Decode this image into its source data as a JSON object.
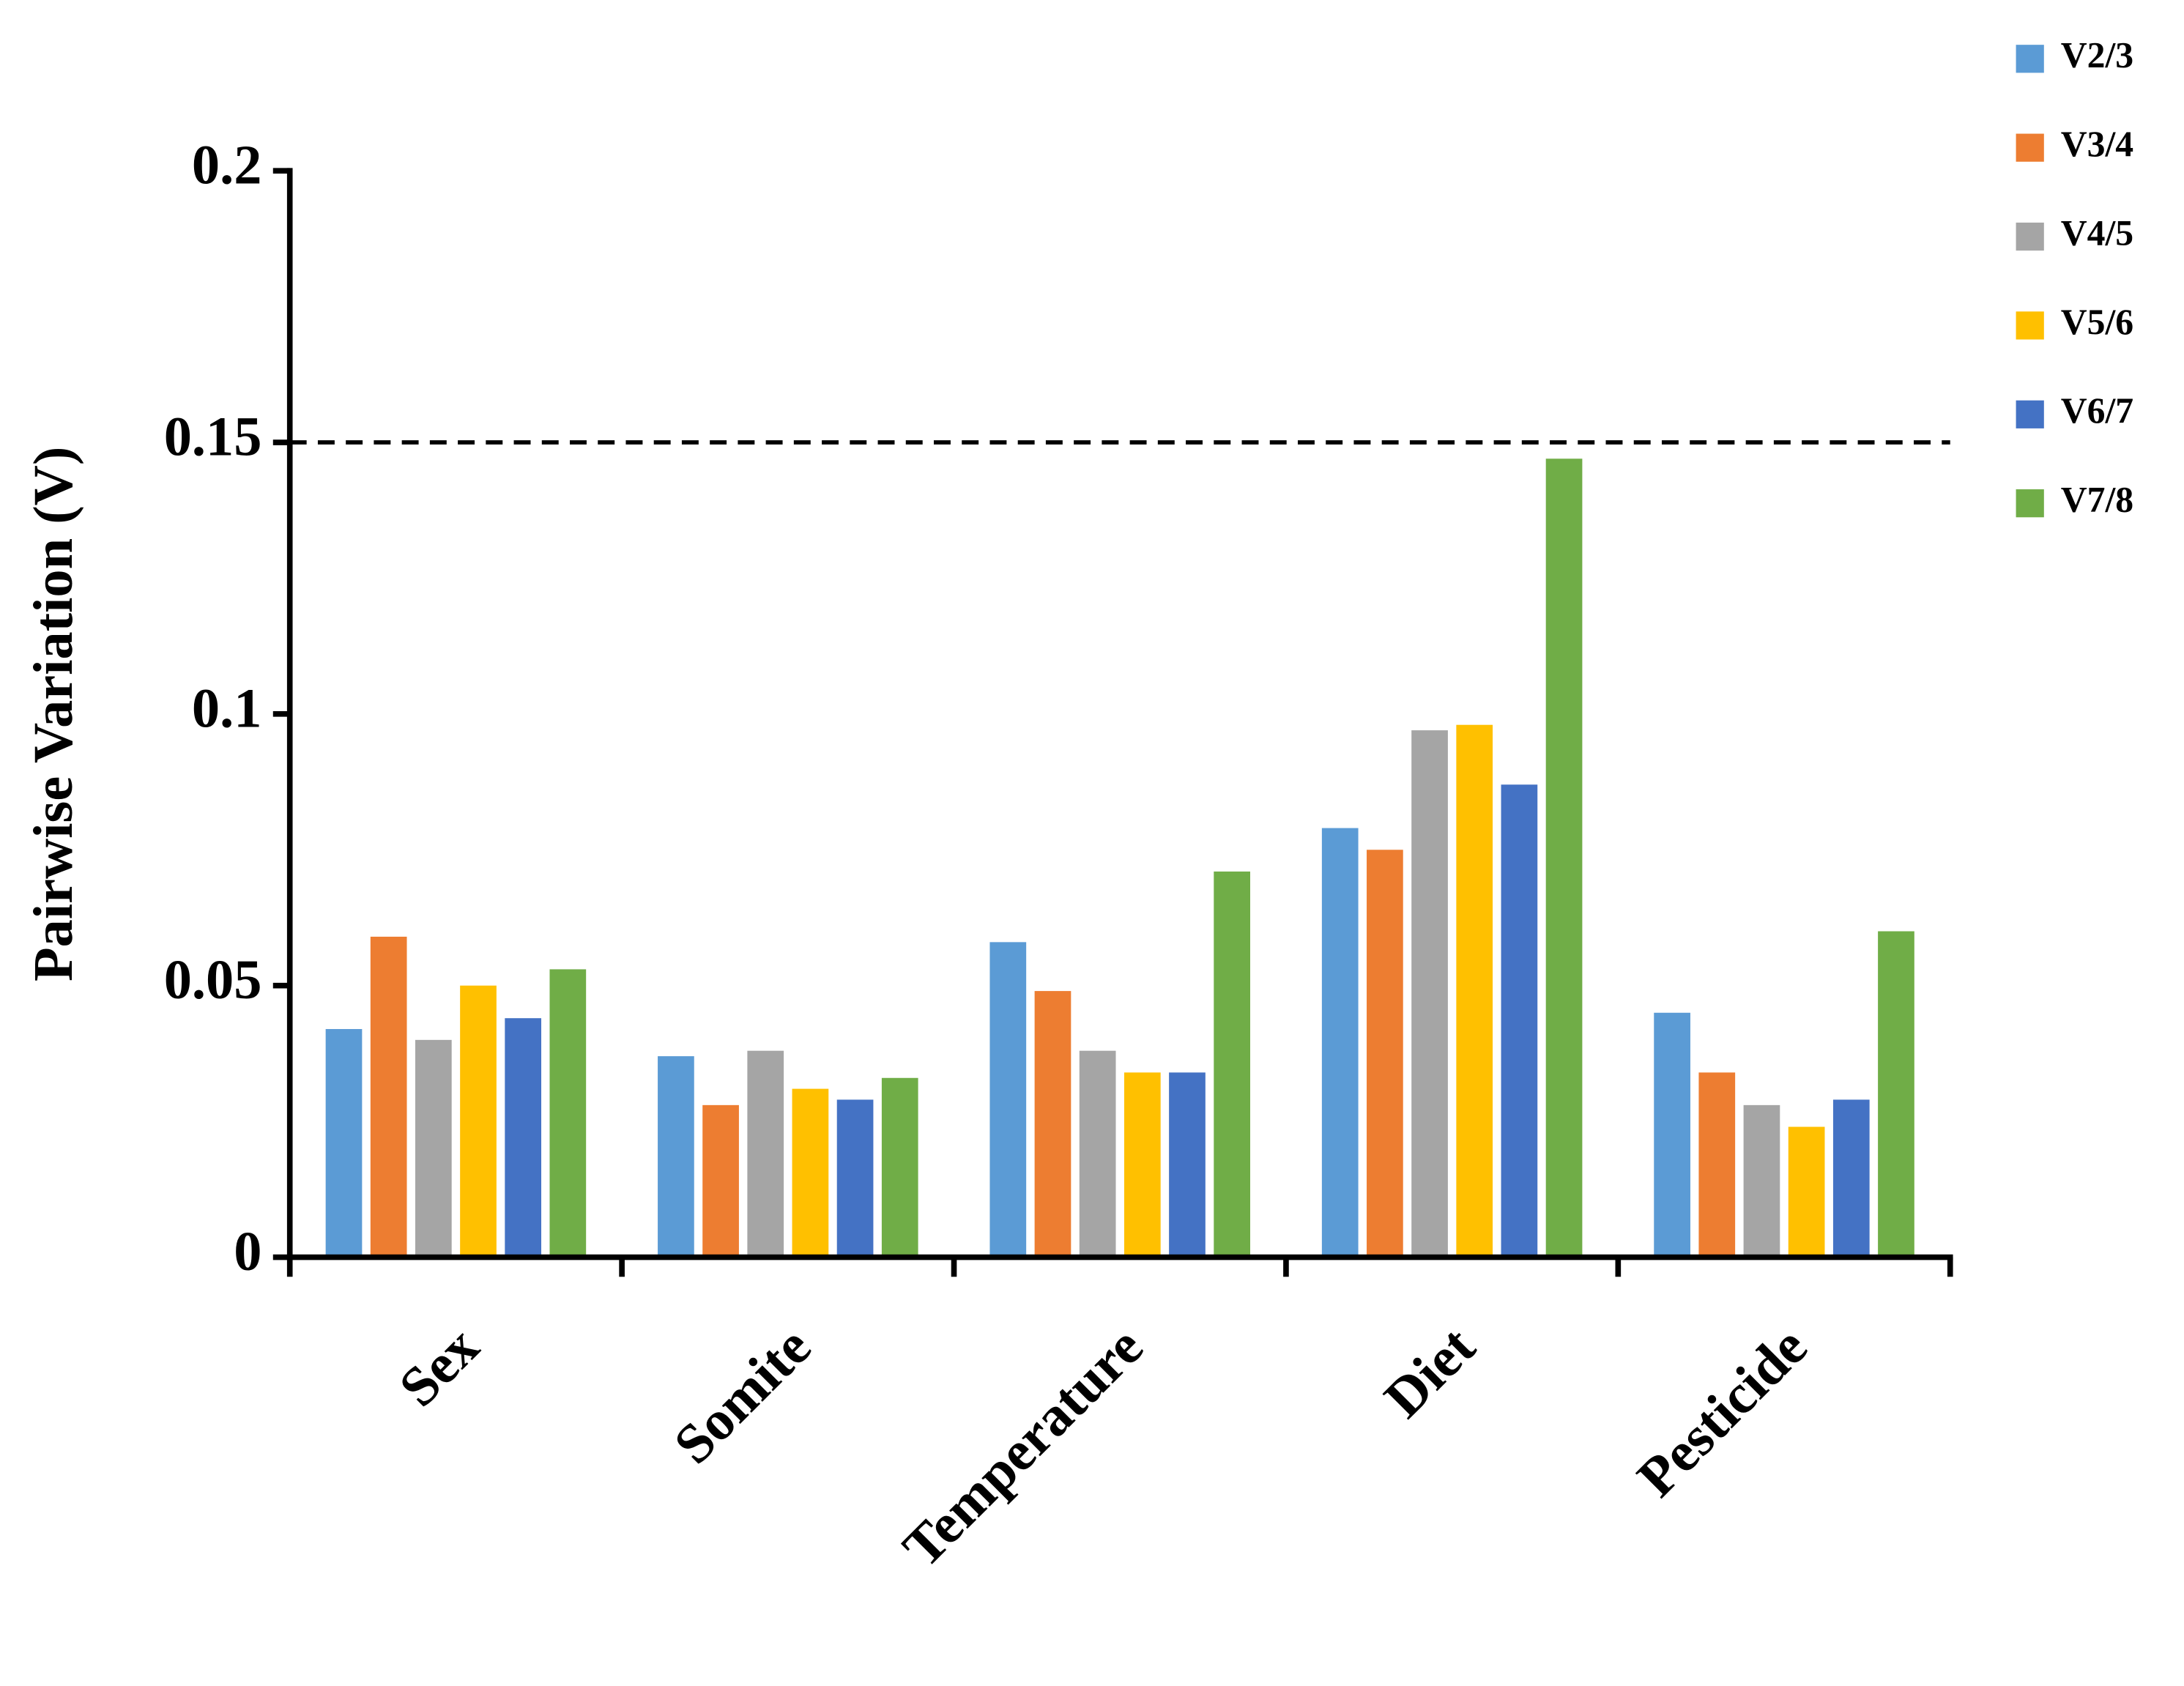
{
  "chart_data": {
    "type": "bar",
    "y_label": "Pairwise Variation (V)",
    "categories": [
      "Sex",
      "Somite",
      "Temperature",
      "Diet",
      "Pesticide"
    ],
    "series": [
      {
        "name": "V2/3",
        "color": "#5b9bd5",
        "values": [
          0.042,
          0.037,
          0.058,
          0.079,
          0.045
        ]
      },
      {
        "name": "V3/4",
        "color": "#ed7d31",
        "values": [
          0.059,
          0.028,
          0.049,
          0.075,
          0.034
        ]
      },
      {
        "name": "V4/5",
        "color": "#a5a5a5",
        "values": [
          0.04,
          0.038,
          0.038,
          0.097,
          0.028
        ]
      },
      {
        "name": "V5/6",
        "color": "#ffc000",
        "values": [
          0.05,
          0.031,
          0.034,
          0.098,
          0.024
        ]
      },
      {
        "name": "V6/7",
        "color": "#4472c4",
        "values": [
          0.044,
          0.029,
          0.034,
          0.087,
          0.029
        ]
      },
      {
        "name": "V7/8",
        "color": "#70ad47",
        "values": [
          0.053,
          0.033,
          0.071,
          0.147,
          0.06
        ]
      }
    ],
    "ylim": [
      0,
      0.2
    ],
    "yticks": [
      0,
      0.05,
      0.1,
      0.15,
      0.2
    ],
    "reference_line": 0.15,
    "legend": "top-right"
  }
}
